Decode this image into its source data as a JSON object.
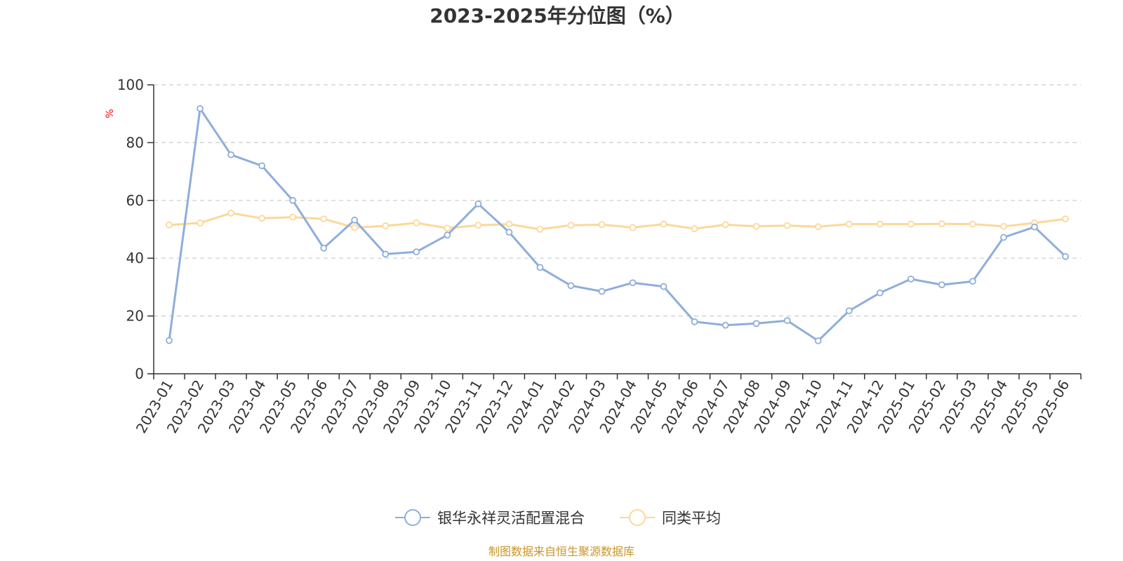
{
  "chart_data": {
    "type": "line",
    "title": "2023-2025年分位图（%）",
    "ylabel": "%",
    "xlabel": "",
    "ylim": [
      0,
      100
    ],
    "yticks": [
      0,
      20,
      40,
      60,
      80,
      100
    ],
    "grid": true,
    "legend_position": "bottom",
    "categories": [
      "2023-01",
      "2023-02",
      "2023-03",
      "2023-04",
      "2023-05",
      "2023-06",
      "2023-07",
      "2023-08",
      "2023-09",
      "2023-10",
      "2023-11",
      "2023-12",
      "2024-01",
      "2024-02",
      "2024-03",
      "2024-04",
      "2024-05",
      "2024-06",
      "2024-07",
      "2024-08",
      "2024-09",
      "2024-10",
      "2024-11",
      "2024-12",
      "2025-01",
      "2025-02",
      "2025-03",
      "2025-04",
      "2025-05",
      "2025-06"
    ],
    "series": [
      {
        "name": "银华永祥灵活配置混合",
        "color": "#8eaedb",
        "values": [
          11.5,
          91.8,
          75.8,
          72.0,
          60.0,
          43.5,
          53.2,
          41.4,
          42.2,
          48.0,
          58.8,
          49.0,
          36.8,
          30.5,
          28.5,
          31.5,
          30.2,
          18.0,
          16.8,
          17.4,
          18.4,
          11.4,
          21.8,
          28.0,
          32.8,
          30.8,
          32.0,
          47.2,
          50.8,
          40.6
        ]
      },
      {
        "name": "同类平均",
        "color": "#fcd898",
        "values": [
          51.5,
          52.2,
          55.6,
          53.8,
          54.2,
          53.6,
          50.6,
          51.2,
          52.2,
          50.4,
          51.4,
          51.8,
          50.0,
          51.4,
          51.6,
          50.6,
          51.8,
          50.2,
          51.6,
          51.0,
          51.3,
          50.9,
          51.8,
          51.8,
          51.8,
          51.9,
          51.8,
          51.0,
          52.2,
          53.6
        ]
      }
    ]
  },
  "colors": {
    "ylabel": "#ff0000",
    "source": "#c8962a",
    "grid": "#cccccc",
    "axis": "#333333"
  },
  "source": "制图数据来自恒生聚源数据库"
}
